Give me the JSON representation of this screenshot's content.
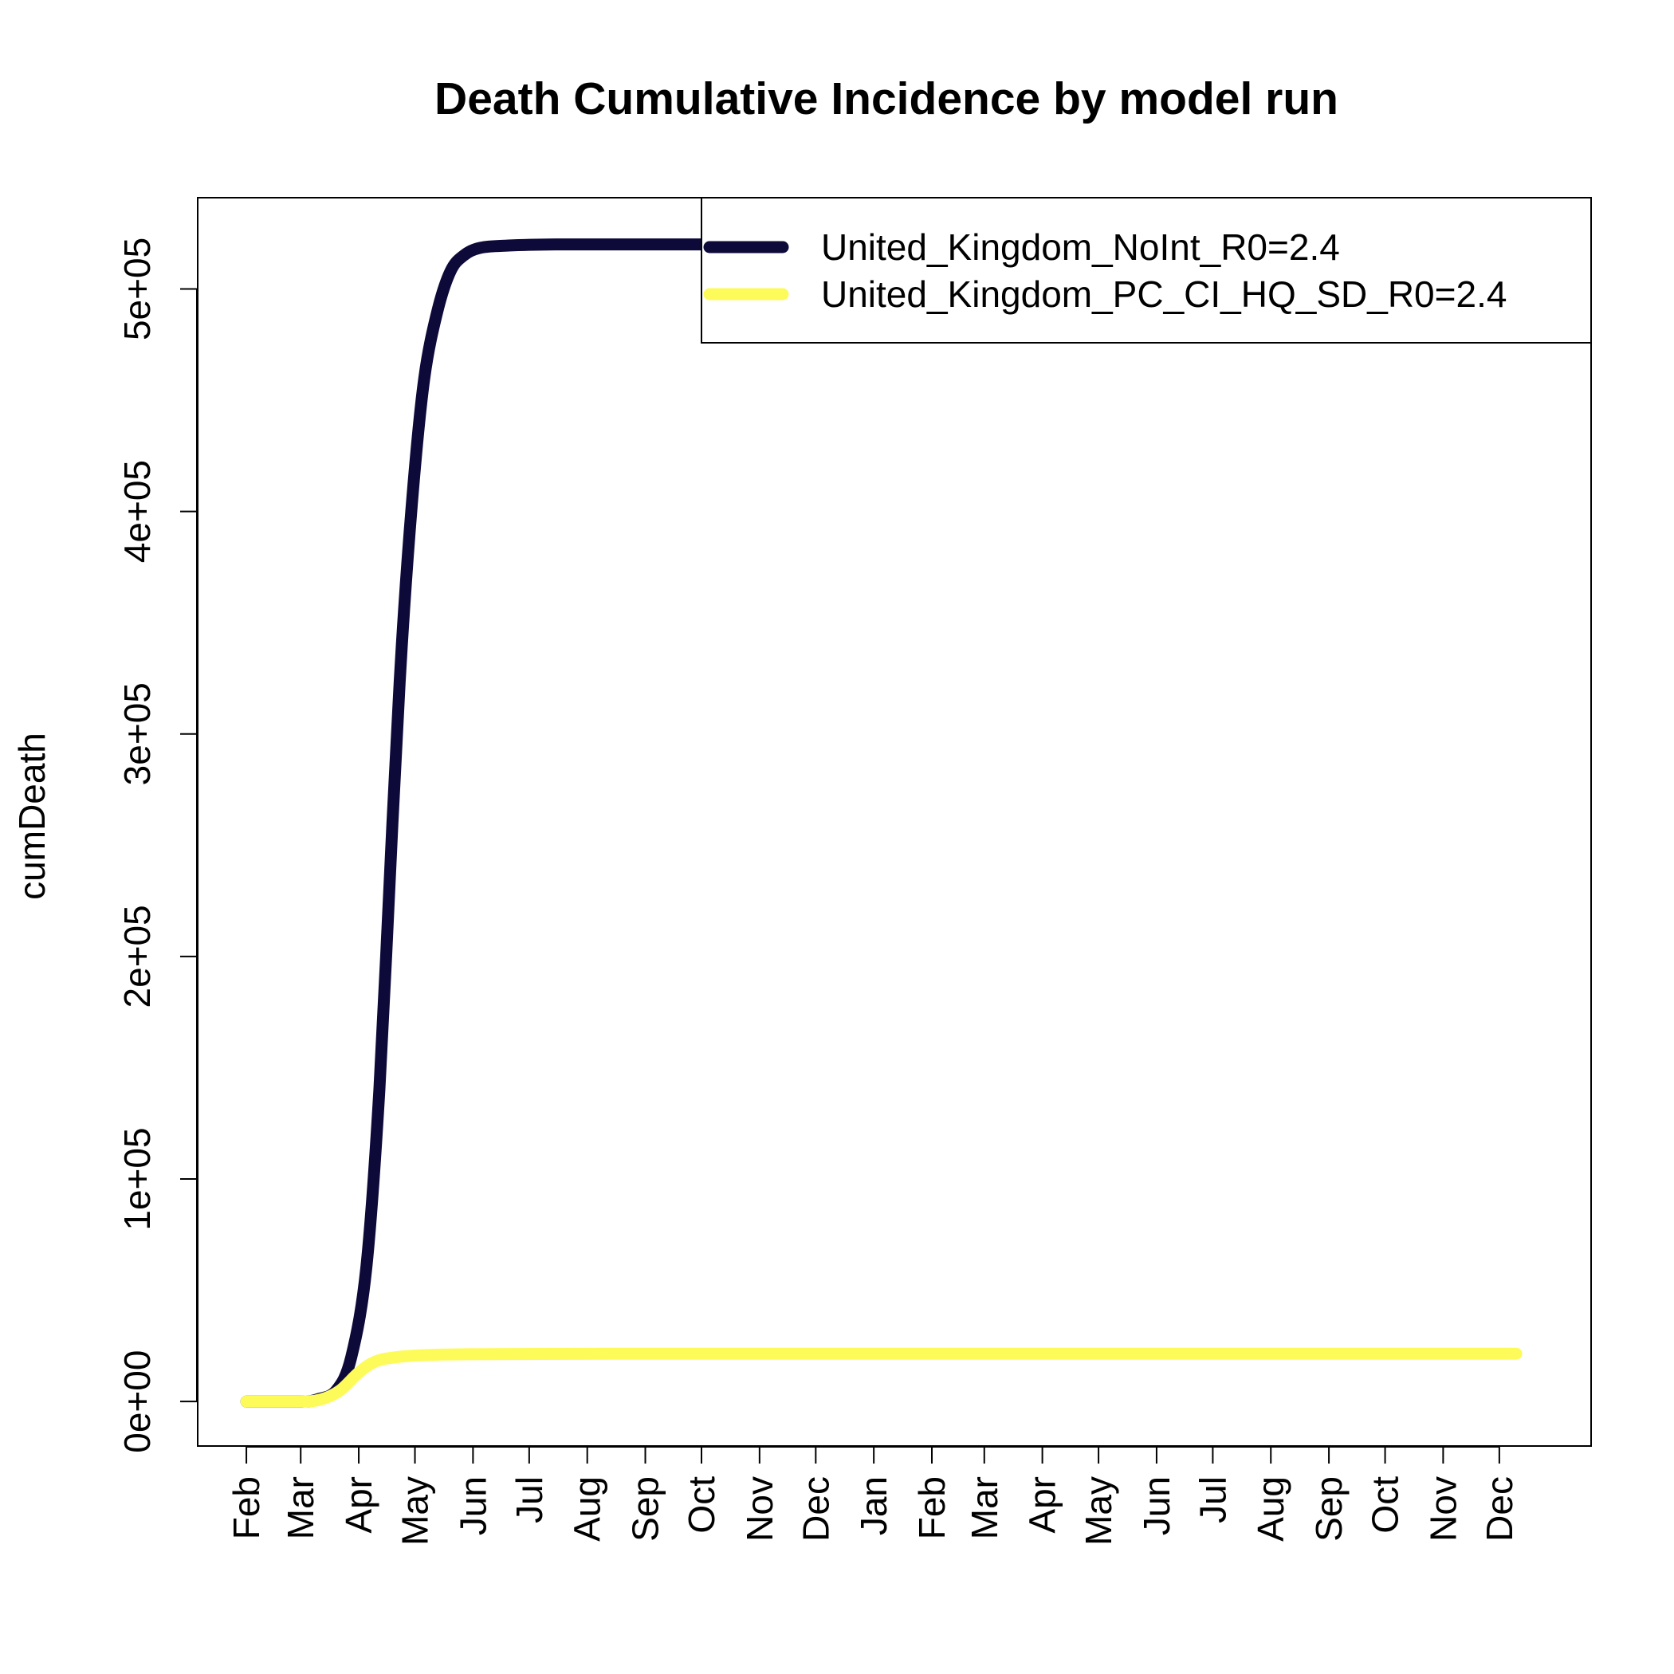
{
  "chart_data": {
    "type": "line",
    "title": "Death Cumulative Incidence by model run",
    "xlabel": "",
    "ylabel": "cumDeath",
    "x_tick_labels": [
      "Feb",
      "Mar",
      "Apr",
      "May",
      "Jun",
      "Jul",
      "Aug",
      "Sep",
      "Oct",
      "Nov",
      "Dec",
      "Jan",
      "Feb",
      "Mar",
      "Apr",
      "May",
      "Jun",
      "Jul",
      "Aug",
      "Sep",
      "Oct",
      "Nov",
      "Dec"
    ],
    "x_tick_dates": [
      "2020-02-01",
      "2020-03-01",
      "2020-04-01",
      "2020-05-01",
      "2020-06-01",
      "2020-07-01",
      "2020-08-01",
      "2020-09-01",
      "2020-10-01",
      "2020-11-01",
      "2020-12-01",
      "2021-01-01",
      "2021-02-01",
      "2021-03-01",
      "2021-04-01",
      "2021-05-01",
      "2021-06-01",
      "2021-07-01",
      "2021-08-01",
      "2021-09-01",
      "2021-10-01",
      "2021-11-01",
      "2021-12-01"
    ],
    "x_range": [
      "2020-01-06",
      "2022-01-19"
    ],
    "y_ticks": [
      0,
      100000,
      200000,
      300000,
      400000,
      500000
    ],
    "y_tick_labels": [
      "0e+00",
      "1e+05",
      "2e+05",
      "3e+05",
      "4e+05",
      "5e+05"
    ],
    "ylim": [
      -20000,
      541000
    ],
    "grid": false,
    "legend_position": "top-right",
    "series": [
      {
        "name": "United_Kingdom_NoInt_R0=2.4",
        "color": "#0d0a3a",
        "points": [
          [
            "2020-02-01",
            0
          ],
          [
            "2020-03-01",
            0
          ],
          [
            "2020-03-10",
            1000
          ],
          [
            "2020-03-20",
            5000
          ],
          [
            "2020-03-28",
            20000
          ],
          [
            "2020-04-05",
            60000
          ],
          [
            "2020-04-12",
            140000
          ],
          [
            "2020-04-19",
            260000
          ],
          [
            "2020-04-24",
            340000
          ],
          [
            "2020-04-30",
            410000
          ],
          [
            "2020-05-06",
            460000
          ],
          [
            "2020-05-13",
            490000
          ],
          [
            "2020-05-20",
            508000
          ],
          [
            "2020-05-27",
            515000
          ],
          [
            "2020-06-05",
            518500
          ],
          [
            "2020-06-20",
            519500
          ],
          [
            "2020-07-15",
            520000
          ],
          [
            "2020-09-01",
            520000
          ],
          [
            "2020-10-05",
            520000
          ]
        ]
      },
      {
        "name": "United_Kingdom_PC_CI_HQ_SD_R0=2.4",
        "color": "#fdfb5a",
        "points": [
          [
            "2020-02-01",
            0
          ],
          [
            "2020-03-01",
            0
          ],
          [
            "2020-03-12",
            1000
          ],
          [
            "2020-03-22",
            5000
          ],
          [
            "2020-04-01",
            13000
          ],
          [
            "2020-04-10",
            18000
          ],
          [
            "2020-04-22",
            20000
          ],
          [
            "2020-05-10",
            21000
          ],
          [
            "2020-06-10",
            21300
          ],
          [
            "2020-09-01",
            21500
          ],
          [
            "2021-06-01",
            21500
          ],
          [
            "2021-12-10",
            21500
          ]
        ]
      }
    ]
  }
}
